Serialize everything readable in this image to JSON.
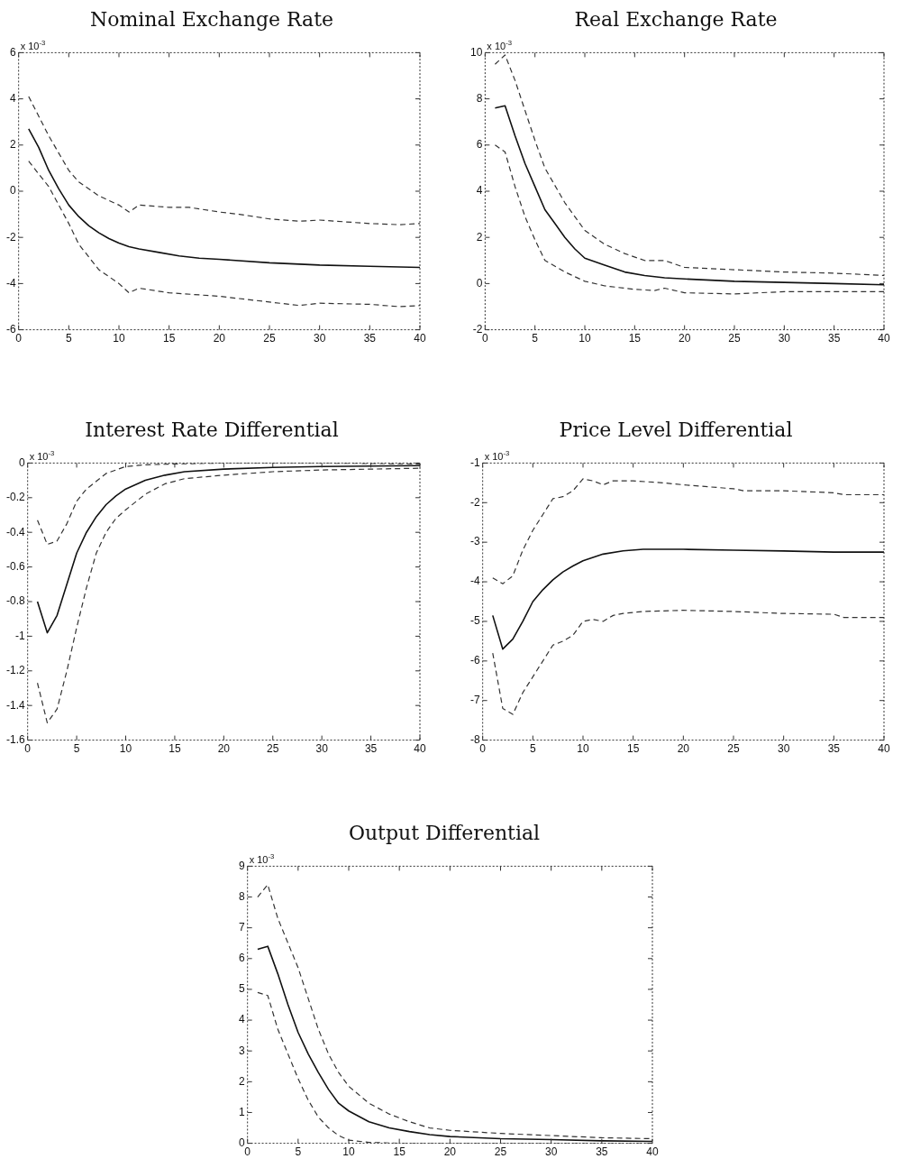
{
  "chart_data": [
    {
      "type": "line",
      "title": "Nominal Exchange Rate",
      "annotations": [
        "x 10$^{-3}$"
      ],
      "xlim": [
        0,
        40
      ],
      "xticks": [
        0,
        5,
        10,
        15,
        20,
        25,
        30,
        35,
        40
      ],
      "ylim": [
        -6,
        6
      ],
      "yticks": [
        -6,
        -4,
        -2,
        0,
        2,
        4,
        6
      ],
      "grid": false,
      "legend": false,
      "marker": "none",
      "series": [
        {
          "color": "#111111",
          "line_style": "solid",
          "x": [
            1,
            2,
            3,
            4,
            5,
            6,
            7,
            8,
            9,
            10,
            11,
            12,
            14,
            16,
            18,
            20,
            25,
            30,
            35,
            40
          ],
          "values": [
            2.7,
            1.9,
            0.9,
            0.1,
            -0.6,
            -1.1,
            -1.5,
            -1.8,
            -2.05,
            -2.25,
            -2.4,
            -2.5,
            -2.65,
            -2.8,
            -2.9,
            -2.95,
            -3.1,
            -3.2,
            -3.25,
            -3.3
          ]
        },
        {
          "color": "#333333",
          "line_style": "dashed",
          "x": [
            1,
            3,
            5,
            6,
            8,
            10,
            11,
            12,
            15,
            17,
            20,
            22,
            25,
            28,
            30,
            35,
            38,
            40
          ],
          "values": [
            4.1,
            2.4,
            0.9,
            0.4,
            -0.2,
            -0.6,
            -0.9,
            -0.6,
            -0.7,
            -0.7,
            -0.9,
            -1.0,
            -1.2,
            -1.3,
            -1.25,
            -1.4,
            -1.45,
            -1.4
          ]
        },
        {
          "color": "#333333",
          "line_style": "dashed",
          "x": [
            1,
            3,
            5,
            6,
            8,
            10,
            11,
            12,
            15,
            20,
            25,
            28,
            30,
            35,
            38,
            40
          ],
          "values": [
            1.3,
            0.2,
            -1.4,
            -2.3,
            -3.4,
            -4.0,
            -4.4,
            -4.2,
            -4.4,
            -4.55,
            -4.8,
            -4.95,
            -4.85,
            -4.9,
            -5.0,
            -4.95
          ]
        }
      ]
    },
    {
      "type": "line",
      "title": "Real Exchange Rate",
      "annotations": [
        "x 10$^{-3}$"
      ],
      "xlim": [
        0,
        40
      ],
      "xticks": [
        0,
        5,
        10,
        15,
        20,
        25,
        30,
        35,
        40
      ],
      "ylim": [
        -2,
        10
      ],
      "yticks": [
        -2,
        0,
        2,
        4,
        6,
        8,
        10
      ],
      "grid": false,
      "legend": false,
      "marker": "none",
      "series": [
        {
          "color": "#111111",
          "line_style": "solid",
          "x": [
            1,
            2,
            3,
            4,
            5,
            6,
            7,
            8,
            9,
            10,
            12,
            14,
            16,
            18,
            20,
            25,
            30,
            35,
            40
          ],
          "values": [
            7.6,
            7.7,
            6.4,
            5.2,
            4.2,
            3.2,
            2.6,
            2.0,
            1.5,
            1.1,
            0.8,
            0.5,
            0.35,
            0.25,
            0.2,
            0.1,
            0.05,
            0.0,
            -0.05
          ]
        },
        {
          "color": "#333333",
          "line_style": "dashed",
          "x": [
            1,
            2,
            3,
            4,
            5,
            6,
            8,
            10,
            12,
            14,
            16,
            18,
            20,
            25,
            30,
            35,
            40
          ],
          "values": [
            9.5,
            9.9,
            8.8,
            7.5,
            6.2,
            5.0,
            3.5,
            2.3,
            1.7,
            1.3,
            1.0,
            1.0,
            0.7,
            0.6,
            0.5,
            0.45,
            0.35
          ]
        },
        {
          "color": "#333333",
          "line_style": "dashed",
          "x": [
            1,
            2,
            3,
            4,
            5,
            6,
            8,
            10,
            12,
            15,
            17,
            18,
            20,
            25,
            30,
            35,
            40
          ],
          "values": [
            6.0,
            5.7,
            4.2,
            2.9,
            1.9,
            1.0,
            0.5,
            0.1,
            -0.1,
            -0.25,
            -0.3,
            -0.2,
            -0.4,
            -0.45,
            -0.35,
            -0.35,
            -0.35
          ]
        }
      ]
    },
    {
      "type": "line",
      "title": "Interest Rate Differential",
      "annotations": [
        "x 10$^{-3}$"
      ],
      "xlim": [
        0,
        40
      ],
      "xticks": [
        0,
        5,
        10,
        15,
        20,
        25,
        30,
        35,
        40
      ],
      "ylim": [
        -1.6,
        0
      ],
      "yticks": [
        -1.6,
        -1.4,
        -1.2,
        -1,
        -0.8,
        -0.6,
        -0.4,
        -0.2,
        0
      ],
      "grid": false,
      "legend": false,
      "marker": "none",
      "series": [
        {
          "color": "#111111",
          "line_style": "solid",
          "x": [
            1,
            2,
            3,
            4,
            5,
            6,
            7,
            8,
            9,
            10,
            12,
            14,
            16,
            20,
            25,
            30,
            40
          ],
          "values": [
            -0.8,
            -0.98,
            -0.88,
            -0.7,
            -0.52,
            -0.4,
            -0.31,
            -0.24,
            -0.19,
            -0.15,
            -0.1,
            -0.07,
            -0.05,
            -0.035,
            -0.025,
            -0.02,
            -0.015
          ]
        },
        {
          "color": "#333333",
          "line_style": "dashed",
          "x": [
            1,
            2,
            3,
            4,
            5,
            6,
            8,
            10,
            12,
            15,
            20,
            30,
            40
          ],
          "values": [
            -0.33,
            -0.47,
            -0.45,
            -0.35,
            -0.22,
            -0.15,
            -0.06,
            -0.02,
            -0.01,
            -0.005,
            0.0,
            0.0,
            -0.005
          ]
        },
        {
          "color": "#333333",
          "line_style": "dashed",
          "x": [
            1,
            2,
            3,
            4,
            5,
            6,
            7,
            8,
            9,
            10,
            12,
            14,
            16,
            20,
            25,
            30,
            40
          ],
          "values": [
            -1.27,
            -1.5,
            -1.42,
            -1.2,
            -0.95,
            -0.72,
            -0.52,
            -0.4,
            -0.32,
            -0.27,
            -0.18,
            -0.12,
            -0.09,
            -0.07,
            -0.05,
            -0.04,
            -0.03
          ]
        }
      ]
    },
    {
      "type": "line",
      "title": "Price Level Differential",
      "annotations": [
        "x 10$^{-3}$"
      ],
      "xlim": [
        0,
        40
      ],
      "xticks": [
        0,
        5,
        10,
        15,
        20,
        25,
        30,
        35,
        40
      ],
      "ylim": [
        -8,
        -1
      ],
      "yticks": [
        -8,
        -7,
        -6,
        -5,
        -4,
        -3,
        -2,
        -1
      ],
      "grid": false,
      "legend": false,
      "marker": "none",
      "series": [
        {
          "color": "#111111",
          "line_style": "solid",
          "x": [
            1,
            2,
            3,
            4,
            5,
            6,
            7,
            8,
            9,
            10,
            12,
            14,
            16,
            20,
            25,
            30,
            35,
            40
          ],
          "values": [
            -4.85,
            -5.7,
            -5.45,
            -5.0,
            -4.5,
            -4.2,
            -3.95,
            -3.75,
            -3.6,
            -3.47,
            -3.3,
            -3.22,
            -3.18,
            -3.18,
            -3.2,
            -3.22,
            -3.25,
            -3.25
          ]
        },
        {
          "color": "#333333",
          "line_style": "dashed",
          "x": [
            1,
            2,
            3,
            4,
            5,
            6,
            7,
            8,
            9,
            10,
            11,
            12,
            13,
            15,
            18,
            20,
            25,
            26,
            30,
            35,
            36,
            40
          ],
          "values": [
            -3.9,
            -4.05,
            -3.85,
            -3.2,
            -2.7,
            -2.3,
            -1.9,
            -1.85,
            -1.7,
            -1.4,
            -1.45,
            -1.55,
            -1.45,
            -1.45,
            -1.5,
            -1.55,
            -1.65,
            -1.7,
            -1.7,
            -1.75,
            -1.8,
            -1.8
          ]
        },
        {
          "color": "#333333",
          "line_style": "dashed",
          "x": [
            1,
            2,
            3,
            4,
            5,
            6,
            7,
            8,
            9,
            10,
            11,
            12,
            13,
            14,
            16,
            20,
            25,
            30,
            35,
            36,
            40
          ],
          "values": [
            -5.8,
            -7.2,
            -7.35,
            -6.8,
            -6.4,
            -6.0,
            -5.6,
            -5.5,
            -5.35,
            -5.0,
            -4.95,
            -5.0,
            -4.85,
            -4.8,
            -4.75,
            -4.72,
            -4.75,
            -4.8,
            -4.82,
            -4.9,
            -4.9
          ]
        }
      ]
    },
    {
      "type": "line",
      "title": "Output Differential",
      "annotations": [
        "x 10$^{-3}$"
      ],
      "xlim": [
        0,
        40
      ],
      "xticks": [
        0,
        5,
        10,
        15,
        20,
        25,
        30,
        35,
        40
      ],
      "ylim": [
        0,
        9
      ],
      "yticks": [
        0,
        1,
        2,
        3,
        4,
        5,
        6,
        7,
        8,
        9
      ],
      "grid": false,
      "legend": false,
      "marker": "none",
      "series": [
        {
          "color": "#111111",
          "line_style": "solid",
          "x": [
            1,
            2,
            3,
            4,
            5,
            6,
            7,
            8,
            9,
            10,
            12,
            14,
            16,
            18,
            20,
            25,
            30,
            35,
            40
          ],
          "values": [
            6.3,
            6.4,
            5.5,
            4.5,
            3.6,
            2.9,
            2.3,
            1.75,
            1.3,
            1.05,
            0.7,
            0.5,
            0.38,
            0.28,
            0.22,
            0.15,
            0.12,
            0.08,
            0.06
          ]
        },
        {
          "color": "#333333",
          "line_style": "dashed",
          "x": [
            1,
            2,
            3,
            4,
            5,
            6,
            7,
            8,
            9,
            10,
            12,
            14,
            16,
            18,
            20,
            25,
            30,
            35,
            40
          ],
          "values": [
            8.0,
            8.4,
            7.3,
            6.5,
            5.7,
            4.7,
            3.7,
            2.9,
            2.3,
            1.85,
            1.3,
            0.95,
            0.7,
            0.5,
            0.42,
            0.32,
            0.25,
            0.18,
            0.15
          ]
        },
        {
          "color": "#333333",
          "line_style": "dashed",
          "x": [
            1,
            2,
            3,
            4,
            5,
            6,
            7,
            8,
            9,
            10,
            12,
            15,
            20,
            30,
            40
          ],
          "values": [
            4.9,
            4.8,
            3.7,
            2.9,
            2.1,
            1.4,
            0.85,
            0.5,
            0.25,
            0.1,
            0.03,
            0.0,
            0.0,
            0.0,
            0.0
          ]
        }
      ]
    }
  ]
}
